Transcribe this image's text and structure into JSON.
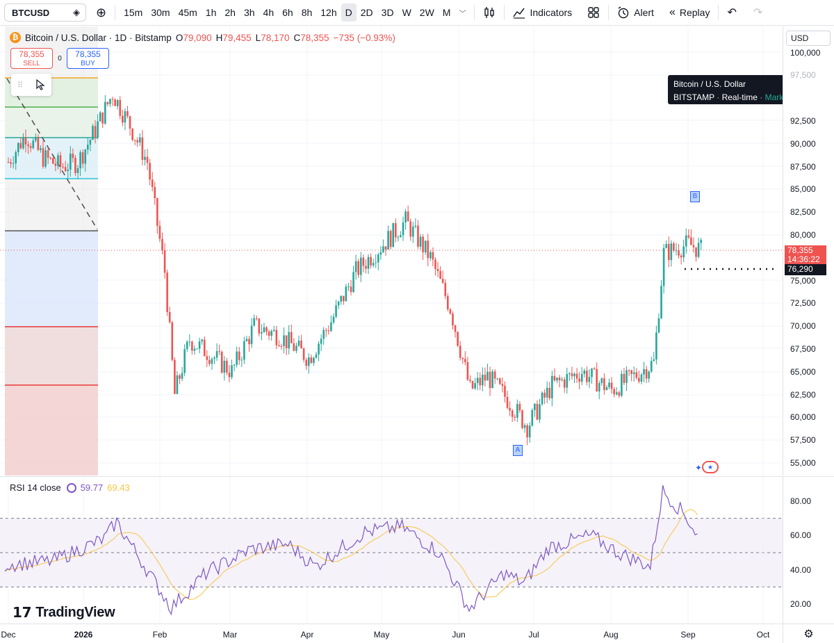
{
  "toolbar": {
    "symbol": "BTCUSD",
    "intervals": [
      "15m",
      "30m",
      "45m",
      "1h",
      "2h",
      "3h",
      "4h",
      "6h",
      "8h",
      "12h",
      "D",
      "2D",
      "3D",
      "W",
      "2W",
      "M"
    ],
    "active_interval": "D",
    "indicators_label": "Indicators",
    "alert_label": "Alert",
    "replay_label": "Replay"
  },
  "legend": {
    "title": "Bitcoin / U.S. Dollar · 1D · Bitstamp",
    "o_key": "O",
    "o_val": "79,090",
    "h_key": "H",
    "h_val": "79,455",
    "l_key": "L",
    "l_val": "78,170",
    "c_key": "C",
    "c_val": "78,355",
    "change": "−735 (−0.93%)"
  },
  "trade": {
    "sell_price": "78,355",
    "sell_label": "SELL",
    "spread": "0",
    "buy_price": "78,355",
    "buy_label": "BUY"
  },
  "tooltip": {
    "title": "Bitcoin / U.S. Dollar",
    "exchange": "BITSTAMP",
    "feed": "Real-time",
    "status": "Market open"
  },
  "price_axis": {
    "currency": "USD",
    "ticks": [
      "100,000",
      "97,500",
      "92,500",
      "90,000",
      "87,500",
      "85,000",
      "82,500",
      "80,000",
      "75,000",
      "72,500",
      "70,000",
      "67,500",
      "65,000",
      "62,500",
      "60,000",
      "57,500",
      "55,000"
    ],
    "last_price": "78,355",
    "countdown": "14:36:22",
    "line_price": "76,290"
  },
  "markers": {
    "a": "A",
    "b": "B"
  },
  "rsi": {
    "label": "RSI 14 close",
    "value": "59.77",
    "ma_value": "69.43",
    "ticks": [
      "80.00",
      "60.00",
      "40.00",
      "20.00"
    ]
  },
  "time_axis": {
    "labels": [
      "Dec",
      "2026",
      "Feb",
      "Mar",
      "Apr",
      "May",
      "Jun",
      "Jul",
      "Aug",
      "Sep",
      "Oct"
    ]
  },
  "watermark": "TradingView",
  "colors": {
    "up": "#26a69a",
    "down": "#ef5350",
    "rsi": "#7e57c2",
    "rsi_ma": "#f7c543"
  },
  "chart_data": {
    "type": "candlestick",
    "title": "Bitcoin / U.S. Dollar · 1D · Bitstamp",
    "y_range": [
      53500,
      101000
    ],
    "x_labels": [
      "Dec",
      "2026",
      "Feb",
      "Mar",
      "Apr",
      "May",
      "Jun",
      "Jul",
      "Aug",
      "Sep",
      "Oct"
    ],
    "close_path": [
      {
        "date": "2025-12-01",
        "close": 88000
      },
      {
        "date": "2025-12-08",
        "close": 91000
      },
      {
        "date": "2025-12-15",
        "close": 88500
      },
      {
        "date": "2025-12-22",
        "close": 87500
      },
      {
        "date": "2025-12-29",
        "close": 88000
      },
      {
        "date": "2026-01-05",
        "close": 91500
      },
      {
        "date": "2026-01-12",
        "close": 95500
      },
      {
        "date": "2026-01-19",
        "close": 92000
      },
      {
        "date": "2026-01-26",
        "close": 88000
      },
      {
        "date": "2026-02-02",
        "close": 76000
      },
      {
        "date": "2026-02-06",
        "close": 62500
      },
      {
        "date": "2026-02-12",
        "close": 68500
      },
      {
        "date": "2026-02-20",
        "close": 67000
      },
      {
        "date": "2026-03-01",
        "close": 65000
      },
      {
        "date": "2026-03-10",
        "close": 70000
      },
      {
        "date": "2026-03-20",
        "close": 69000
      },
      {
        "date": "2026-04-01",
        "close": 66500
      },
      {
        "date": "2026-04-10",
        "close": 70500
      },
      {
        "date": "2026-04-20",
        "close": 76000
      },
      {
        "date": "2026-05-01",
        "close": 79000
      },
      {
        "date": "2026-05-10",
        "close": 81500
      },
      {
        "date": "2026-05-20",
        "close": 77500
      },
      {
        "date": "2026-05-28",
        "close": 72000
      },
      {
        "date": "2026-06-05",
        "close": 63000
      },
      {
        "date": "2026-06-12",
        "close": 64500
      },
      {
        "date": "2026-06-20",
        "close": 62000
      },
      {
        "date": "2026-06-28",
        "close": 59000
      },
      {
        "date": "2026-07-08",
        "close": 63500
      },
      {
        "date": "2026-07-20",
        "close": 65000
      },
      {
        "date": "2026-08-01",
        "close": 63000
      },
      {
        "date": "2026-08-10",
        "close": 64500
      },
      {
        "date": "2026-08-18",
        "close": 66000
      },
      {
        "date": "2026-08-22",
        "close": 78000
      },
      {
        "date": "2026-09-01",
        "close": 79000
      },
      {
        "date": "2026-09-06",
        "close": 78355
      }
    ],
    "rsi_series": {
      "name": "RSI 14 close",
      "ylim": [
        10,
        90
      ],
      "bands": [
        70,
        50,
        30
      ],
      "points": [
        {
          "date": "2025-12-01",
          "rsi": 43
        },
        {
          "date": "2025-12-20",
          "rsi": 45
        },
        {
          "date": "2026-01-10",
          "rsi": 58
        },
        {
          "date": "2026-01-15",
          "rsi": 68
        },
        {
          "date": "2026-01-25",
          "rsi": 45
        },
        {
          "date": "2026-02-06",
          "rsi": 18
        },
        {
          "date": "2026-02-20",
          "rsi": 38
        },
        {
          "date": "2026-03-10",
          "rsi": 52
        },
        {
          "date": "2026-03-25",
          "rsi": 55
        },
        {
          "date": "2026-04-05",
          "rsi": 42
        },
        {
          "date": "2026-04-25",
          "rsi": 62
        },
        {
          "date": "2026-05-10",
          "rsi": 65
        },
        {
          "date": "2026-05-25",
          "rsi": 50
        },
        {
          "date": "2026-06-06",
          "rsi": 17
        },
        {
          "date": "2026-06-20",
          "rsi": 38
        },
        {
          "date": "2026-06-28",
          "rsi": 32
        },
        {
          "date": "2026-07-08",
          "rsi": 53
        },
        {
          "date": "2026-07-25",
          "rsi": 60
        },
        {
          "date": "2026-08-05",
          "rsi": 50
        },
        {
          "date": "2026-08-18",
          "rsi": 42
        },
        {
          "date": "2026-08-23",
          "rsi": 86
        },
        {
          "date": "2026-09-01",
          "rsi": 72
        },
        {
          "date": "2026-09-06",
          "rsi": 59.77
        }
      ]
    }
  }
}
